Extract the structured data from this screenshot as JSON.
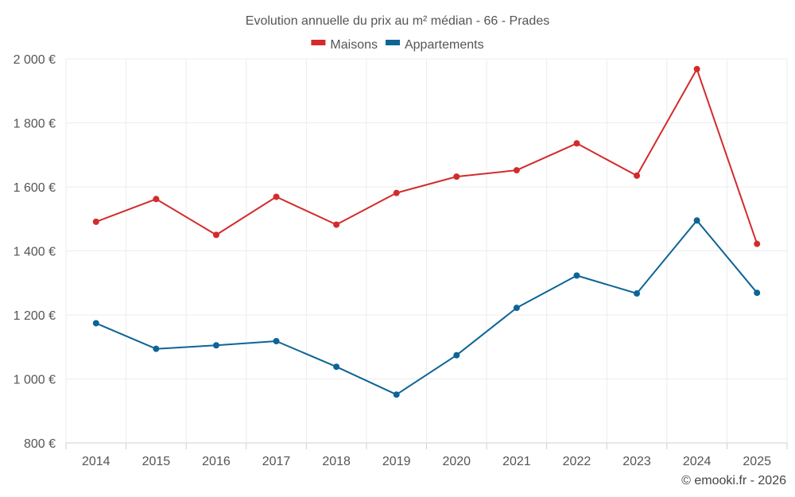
{
  "chart_data": {
    "type": "line",
    "title": "Evolution annuelle du prix au m² médian - 66 - Prades",
    "categories": [
      "2014",
      "2015",
      "2016",
      "2017",
      "2018",
      "2019",
      "2020",
      "2021",
      "2022",
      "2023",
      "2024",
      "2025"
    ],
    "series": [
      {
        "name": "Maisons",
        "color": "#d32b2b",
        "values": [
          1491,
          1562,
          1450,
          1569,
          1482,
          1581,
          1632,
          1652,
          1736,
          1635,
          1968,
          1422
        ]
      },
      {
        "name": "Appartements",
        "color": "#0d6496",
        "values": [
          1174,
          1094,
          1105,
          1118,
          1038,
          951,
          1074,
          1222,
          1323,
          1267,
          1495,
          1269
        ]
      }
    ],
    "ylim": [
      800,
      2000
    ],
    "yticks": [
      800,
      1000,
      1200,
      1400,
      1600,
      1800,
      2000
    ],
    "ytick_labels": [
      "800 €",
      "1 000 €",
      "1 200 €",
      "1 400 €",
      "1 600 €",
      "1 800 €",
      "2 000 €"
    ],
    "xlabel": "",
    "ylabel": "",
    "legend_position": "top-center",
    "grid": true
  },
  "credit": "© emooki.fr - 2026"
}
